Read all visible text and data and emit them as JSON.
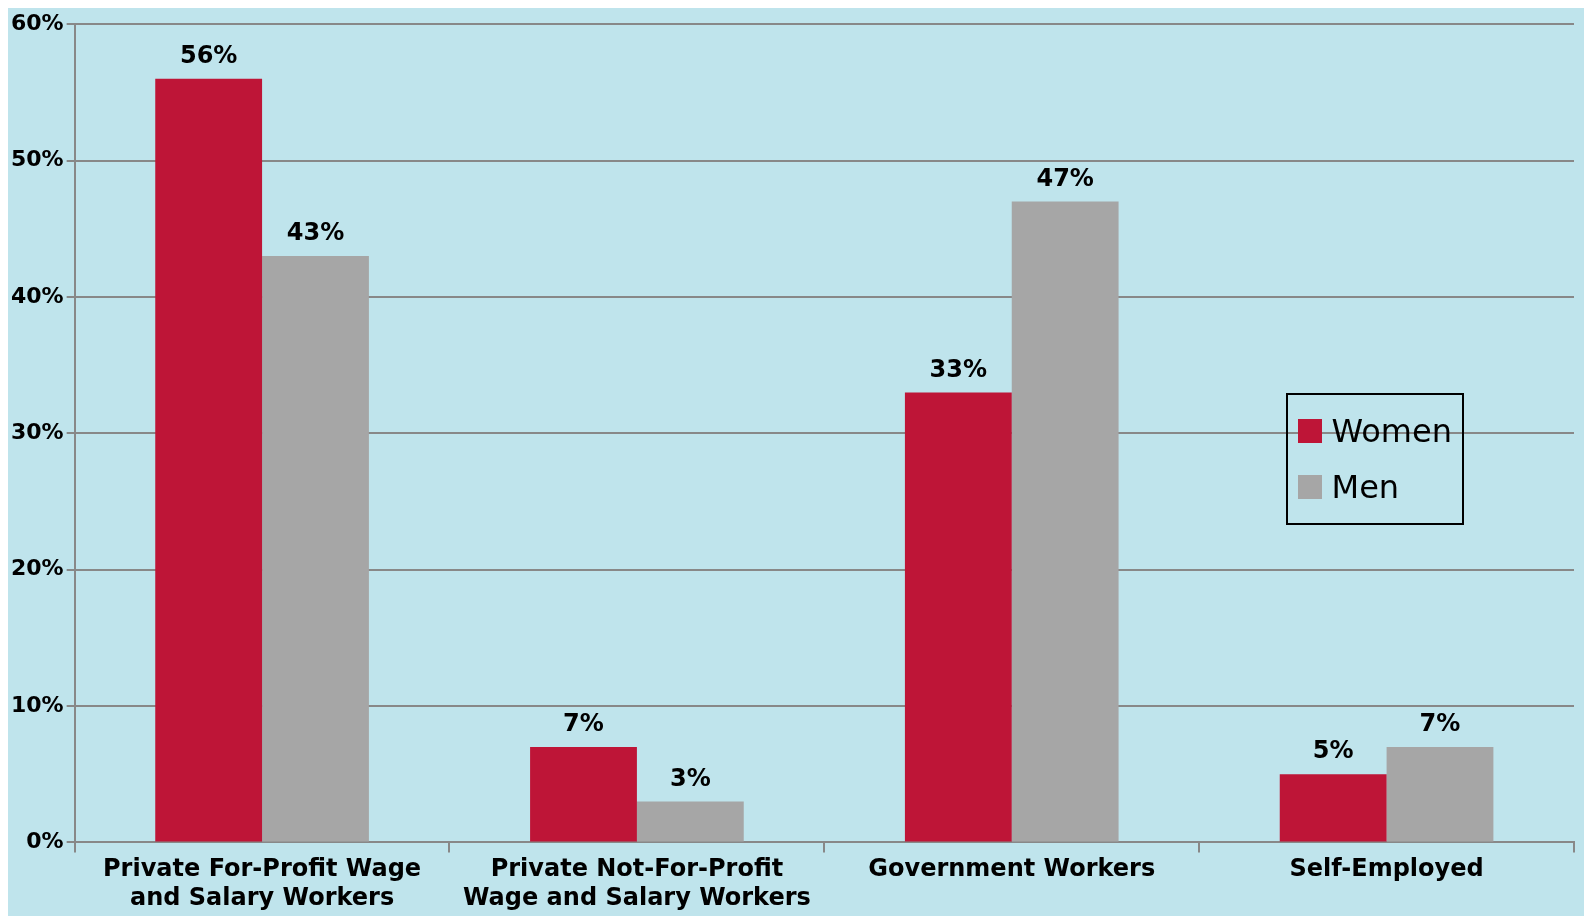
{
  "chart_data": {
    "type": "bar",
    "categories": [
      "Private For-Profit Wage and Salary Workers",
      "Private Not-For-Profit Wage and Salary Workers",
      "Government Workers",
      "Self-Employed"
    ],
    "series": [
      {
        "name": "Women",
        "color": "#be1537",
        "values": [
          56,
          7,
          33,
          5
        ],
        "value_labels": [
          "56%",
          "7%",
          "33%",
          "5%"
        ]
      },
      {
        "name": "Men",
        "color": "#a6a6a6",
        "values": [
          43,
          3,
          47,
          7
        ],
        "value_labels": [
          "43%",
          "3%",
          "47%",
          "7%"
        ]
      }
    ],
    "ylim": [
      0,
      60
    ],
    "yticks": [
      {
        "value": 0,
        "label": "0%"
      },
      {
        "value": 10,
        "label": "10%"
      },
      {
        "value": 20,
        "label": "20%"
      },
      {
        "value": 30,
        "label": "30%"
      },
      {
        "value": 40,
        "label": "40%"
      },
      {
        "value": 50,
        "label": "50%"
      },
      {
        "value": 60,
        "label": "60%"
      }
    ],
    "grid": "y",
    "legend": "right"
  }
}
